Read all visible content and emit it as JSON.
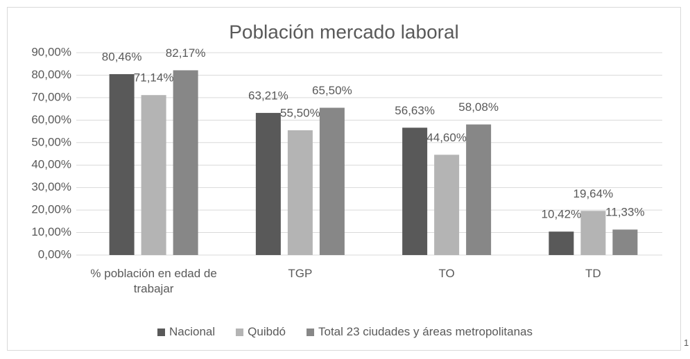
{
  "chart_data": {
    "type": "bar",
    "title": "Población mercado laboral",
    "categories": [
      "% población en edad de trabajar",
      "TGP",
      "TO",
      "TD"
    ],
    "series": [
      {
        "name": "Nacional",
        "color": "#595959",
        "values": [
          80.46,
          63.21,
          56.63,
          10.42
        ],
        "value_labels": [
          "80,46%",
          "63,21%",
          "56,63%",
          "10,42%"
        ]
      },
      {
        "name": "Quibdó",
        "color": "#b4b4b4",
        "values": [
          71.14,
          55.5,
          44.6,
          19.64
        ],
        "value_labels": [
          "71,14%",
          "55,50%",
          "44,60%",
          "19,64%"
        ]
      },
      {
        "name": "Total 23 ciudades y áreas metropolitanas",
        "color": "#878787",
        "values": [
          82.17,
          65.5,
          58.08,
          11.33
        ],
        "value_labels": [
          "82,17%",
          "65,50%",
          "58,08%",
          "11,33%"
        ]
      }
    ],
    "ylim": [
      0,
      90
    ],
    "yticks": [
      {
        "value": 0,
        "label": "0,00%"
      },
      {
        "value": 10,
        "label": "10,00%"
      },
      {
        "value": 20,
        "label": "20,00%"
      },
      {
        "value": 30,
        "label": "30,00%"
      },
      {
        "value": 40,
        "label": "40,00%"
      },
      {
        "value": 50,
        "label": "50,00%"
      },
      {
        "value": 60,
        "label": "60,00%"
      },
      {
        "value": 70,
        "label": "70,00%"
      },
      {
        "value": 80,
        "label": "80,00%"
      },
      {
        "value": 90,
        "label": "90,00%"
      }
    ],
    "grid": true,
    "legend": "bottom"
  },
  "footnote_marker": "1"
}
